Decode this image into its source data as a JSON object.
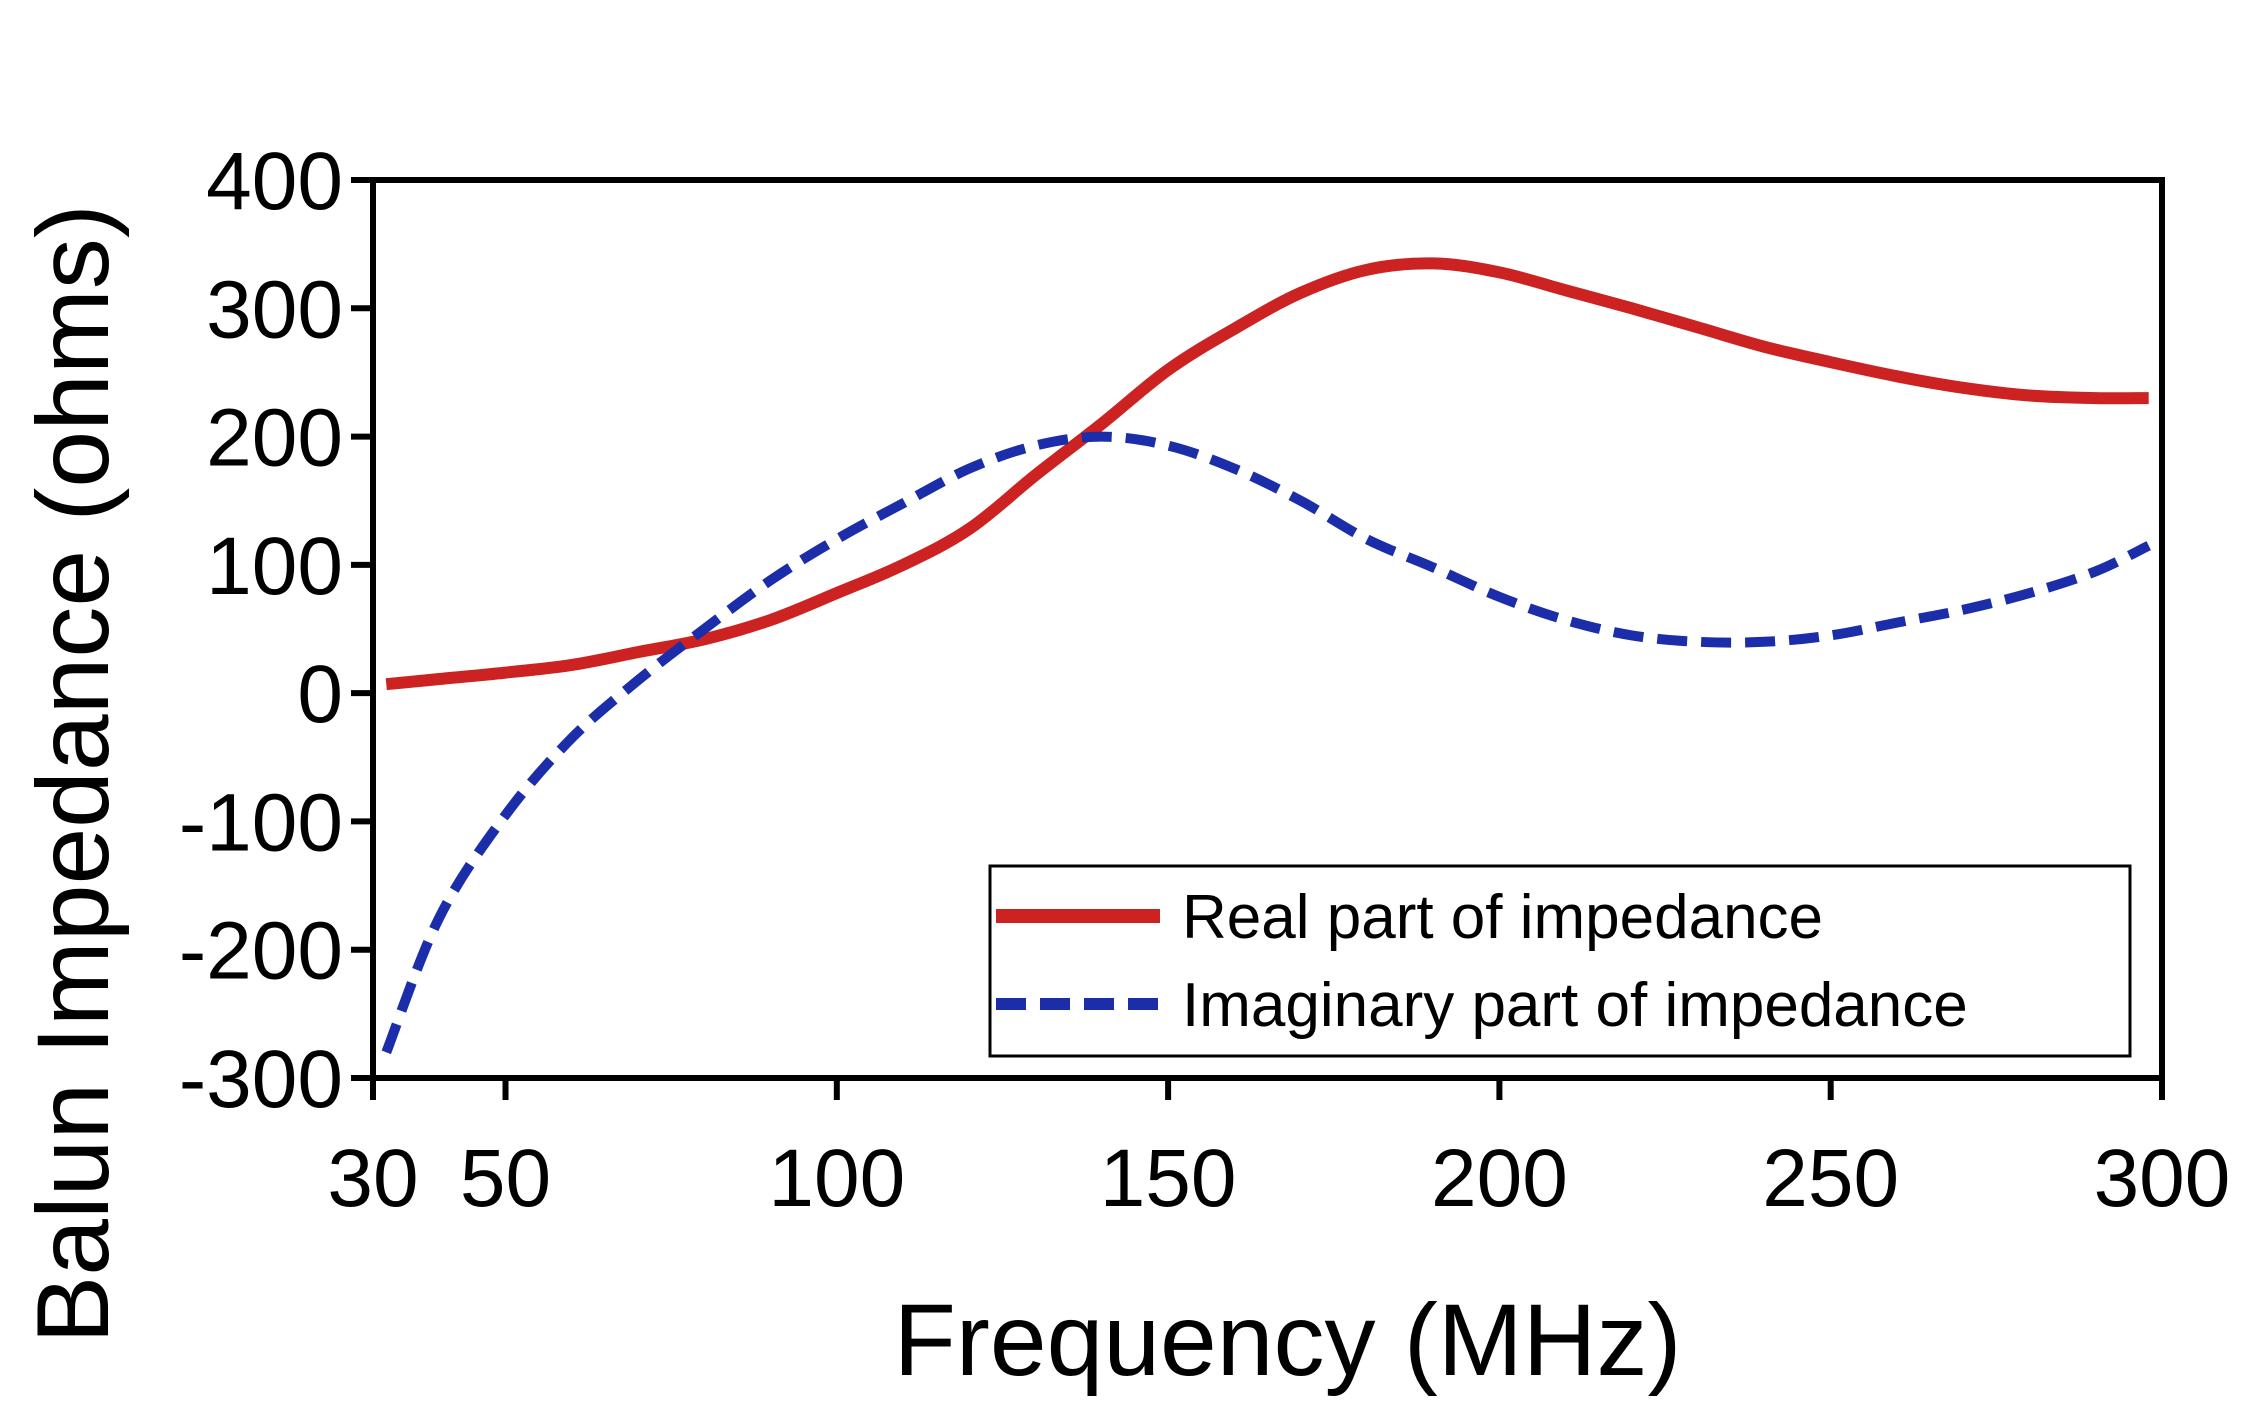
{
  "chart_data": {
    "type": "line",
    "title": "",
    "xlabel": "Frequency (MHz)",
    "ylabel": "Balun Impedance (ohms)",
    "xlim": [
      30,
      300
    ],
    "ylim": [
      -300,
      400
    ],
    "x_ticks": [
      30,
      50,
      100,
      150,
      200,
      250,
      300
    ],
    "x_tick_labels": [
      "30",
      "50",
      "100",
      "150",
      "200",
      "250",
      "300"
    ],
    "y_ticks": [
      -300,
      -200,
      -100,
      0,
      100,
      200,
      300,
      400
    ],
    "y_tick_labels": [
      "-300",
      "-200",
      "-100",
      "0",
      "100",
      "200",
      "300",
      "400"
    ],
    "grid": false,
    "legend_position": "bottom-right",
    "series": [
      {
        "name": "Real part of impedance",
        "color": "#cc2222",
        "style": "solid",
        "x": [
          32,
          40,
          50,
          60,
          70,
          80,
          90,
          100,
          110,
          120,
          130,
          140,
          150,
          160,
          170,
          180,
          190,
          200,
          210,
          220,
          230,
          240,
          250,
          260,
          270,
          280,
          290,
          298
        ],
        "y": [
          7,
          11,
          16,
          22,
          32,
          42,
          57,
          78,
          100,
          128,
          170,
          210,
          252,
          284,
          312,
          330,
          335,
          328,
          314,
          300,
          285,
          270,
          258,
          247,
          238,
          232,
          230,
          230
        ]
      },
      {
        "name": "Imaginary part of impedance",
        "color": "#1c2daa",
        "style": "dashed",
        "x": [
          32,
          40,
          50,
          60,
          70,
          80,
          90,
          100,
          110,
          120,
          130,
          140,
          150,
          160,
          170,
          180,
          190,
          200,
          210,
          220,
          230,
          240,
          250,
          260,
          270,
          280,
          290,
          298
        ],
        "y": [
          -280,
          -175,
          -95,
          -35,
          10,
          50,
          88,
          120,
          148,
          175,
          193,
          200,
          193,
          175,
          150,
          120,
          98,
          75,
          57,
          45,
          40,
          40,
          45,
          55,
          65,
          78,
          95,
          115
        ]
      }
    ]
  }
}
